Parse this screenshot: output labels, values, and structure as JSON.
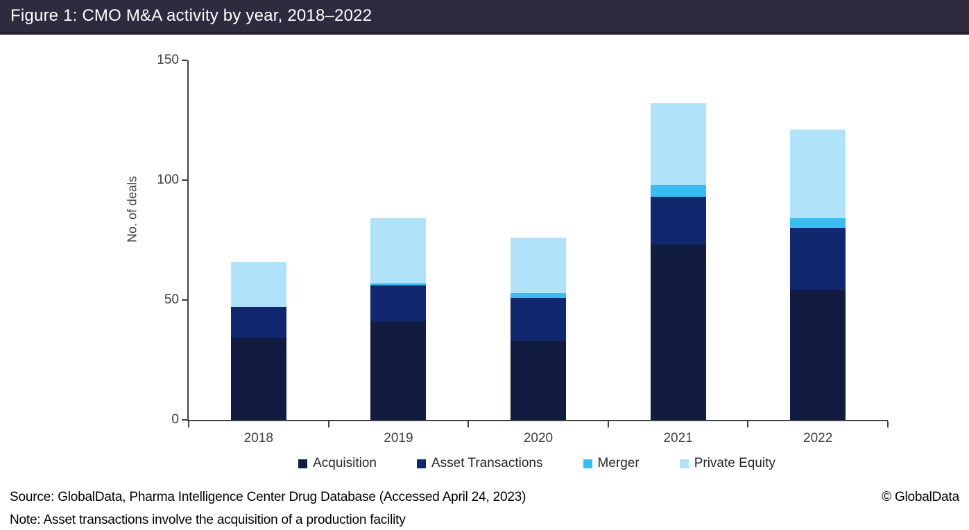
{
  "title_bar": {
    "text": "Figure 1: CMO M&A activity by year, 2018–2022",
    "bg_color": "#2F2A3E"
  },
  "chart_data": {
    "type": "bar",
    "stacked": true,
    "categories": [
      "2018",
      "2019",
      "2020",
      "2021",
      "2022"
    ],
    "series": [
      {
        "name": "Acquisition",
        "color": "#111C40",
        "values": [
          34,
          41,
          33,
          73,
          54
        ]
      },
      {
        "name": "Asset Transactions",
        "color": "#12286E",
        "values": [
          13,
          15,
          18,
          20,
          26
        ]
      },
      {
        "name": "Merger",
        "color": "#38BDF2",
        "values": [
          0,
          1,
          2,
          5,
          4
        ]
      },
      {
        "name": "Private Equity",
        "color": "#B0E3F9",
        "values": [
          19,
          27,
          23,
          34,
          37
        ]
      }
    ],
    "stack_totals": [
      66,
      84,
      76,
      132,
      121
    ],
    "ylabel": "No. of deals",
    "ylim": [
      0,
      150
    ],
    "yticks": [
      0,
      50,
      100,
      150
    ],
    "grid": false,
    "legend_position": "bottom"
  },
  "footer": {
    "source": "Source: GlobalData, Pharma Intelligence Center Drug Database (Accessed April 24, 2023)",
    "copyright": "© GlobalData",
    "note": "Note: Asset transactions involve the acquisition of a production facility"
  }
}
